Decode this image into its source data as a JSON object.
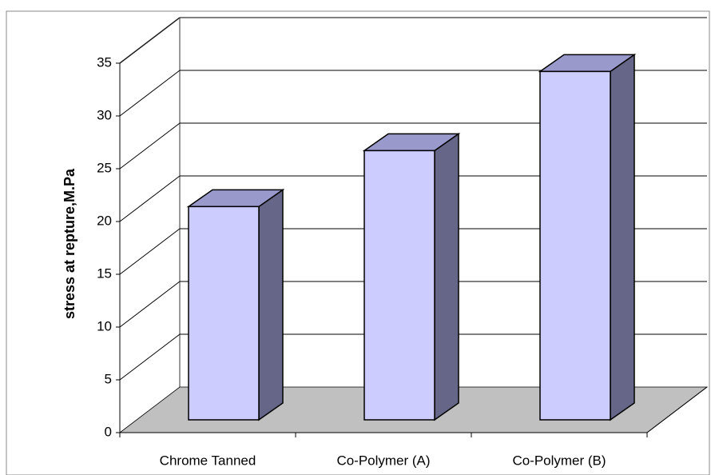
{
  "chart_data": {
    "type": "bar3d",
    "y_label": "stress at repture,M.Pa",
    "categories": [
      "Chrome Tanned",
      "Co-Polymer (A)",
      "Co-Polymer (B)"
    ],
    "values": [
      20.2,
      25.5,
      33
    ],
    "color": "#ccccff",
    "side_color": "#666688",
    "top_color": "#9999cc",
    "ylim": [
      0,
      35
    ],
    "yticks": [
      0,
      5,
      10,
      15,
      20,
      25,
      30,
      35
    ],
    "grid": true
  }
}
